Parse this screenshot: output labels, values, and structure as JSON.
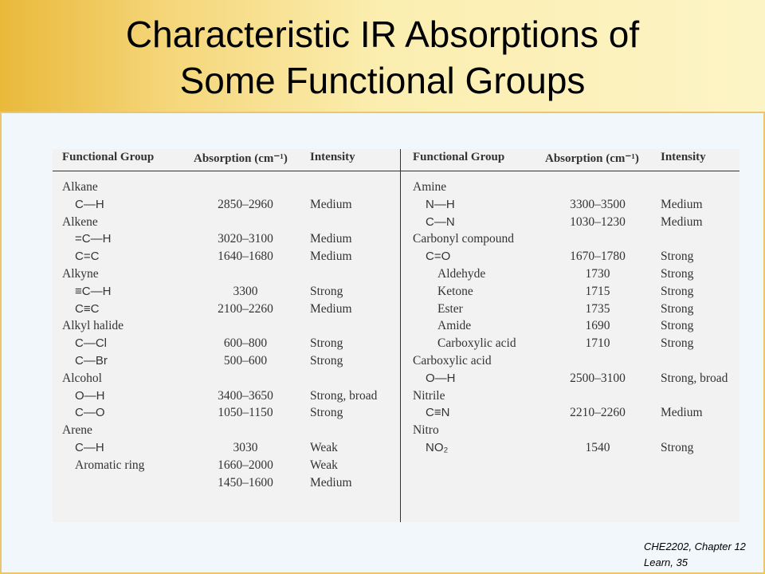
{
  "title": {
    "line1": "Characteristic IR Absorptions of",
    "line2": "Some Functional Groups"
  },
  "headers": {
    "functional_group": "Functional Group",
    "absorption": "Absorption (cm⁻¹)",
    "intensity": "Intensity"
  },
  "left_rows": [
    {
      "group": "Alkane",
      "abs": "",
      "int": "",
      "indent": 0
    },
    {
      "group": "C—H",
      "abs": "2850–2960",
      "int": "Medium",
      "indent": 1
    },
    {
      "group": "Alkene",
      "abs": "",
      "int": "",
      "indent": 0
    },
    {
      "group": "=C—H",
      "abs": "3020–3100",
      "int": "Medium",
      "indent": 1
    },
    {
      "group": "C=C",
      "abs": "1640–1680",
      "int": "Medium",
      "indent": 1
    },
    {
      "group": "Alkyne",
      "abs": "",
      "int": "",
      "indent": 0
    },
    {
      "group": "≡C—H",
      "abs": "3300",
      "int": "Strong",
      "indent": 1
    },
    {
      "group": "C≡C",
      "abs": "2100–2260",
      "int": "Medium",
      "indent": 1
    },
    {
      "group": "Alkyl halide",
      "abs": "",
      "int": "",
      "indent": 0
    },
    {
      "group": "C—Cl",
      "abs": "600–800",
      "int": "Strong",
      "indent": 1
    },
    {
      "group": "C—Br",
      "abs": "500–600",
      "int": "Strong",
      "indent": 1
    },
    {
      "group": "Alcohol",
      "abs": "",
      "int": "",
      "indent": 0
    },
    {
      "group": "O—H",
      "abs": "3400–3650",
      "int": "Strong, broad",
      "indent": 1
    },
    {
      "group": "C—O",
      "abs": "1050–1150",
      "int": "Strong",
      "indent": 1
    },
    {
      "group": "Arene",
      "abs": "",
      "int": "",
      "indent": 0
    },
    {
      "group": "C—H",
      "abs": "3030",
      "int": "Weak",
      "indent": 1
    },
    {
      "group": "Aromatic ring",
      "abs": "1660–2000",
      "int": "Weak",
      "indent": 2
    },
    {
      "group": "",
      "abs": "1450–1600",
      "int": "Medium",
      "indent": 2
    }
  ],
  "right_rows": [
    {
      "group": "Amine",
      "abs": "",
      "int": "",
      "indent": 0
    },
    {
      "group": "N—H",
      "abs": "3300–3500",
      "int": "Medium",
      "indent": 1
    },
    {
      "group": "C—N",
      "abs": "1030–1230",
      "int": "Medium",
      "indent": 1
    },
    {
      "group": "Carbonyl compound",
      "abs": "",
      "int": "",
      "indent": 0
    },
    {
      "group": "C=O",
      "abs": "1670–1780",
      "int": "Strong",
      "indent": 1
    },
    {
      "group": "Aldehyde",
      "abs": "1730",
      "int": "Strong",
      "indent": 3
    },
    {
      "group": "Ketone",
      "abs": "1715",
      "int": "Strong",
      "indent": 3
    },
    {
      "group": "Ester",
      "abs": "1735",
      "int": "Strong",
      "indent": 3
    },
    {
      "group": "Amide",
      "abs": "1690",
      "int": "Strong",
      "indent": 3
    },
    {
      "group": "Carboxylic acid",
      "abs": "1710",
      "int": "Strong",
      "indent": 3
    },
    {
      "group": "Carboxylic acid",
      "abs": "",
      "int": "",
      "indent": 0
    },
    {
      "group": "O—H",
      "abs": "2500–3100",
      "int": "Strong, broad",
      "indent": 1
    },
    {
      "group": "Nitrile",
      "abs": "",
      "int": "",
      "indent": 0
    },
    {
      "group": "C≡N",
      "abs": "2210–2260",
      "int": "Medium",
      "indent": 1
    },
    {
      "group": "Nitro",
      "abs": "",
      "int": "",
      "indent": 0
    },
    {
      "group": "NO₂",
      "abs": "1540",
      "int": "Strong",
      "indent": 1
    }
  ],
  "footer": {
    "line1": "CHE2202, Chapter 12",
    "line2": "Learn, 35"
  }
}
